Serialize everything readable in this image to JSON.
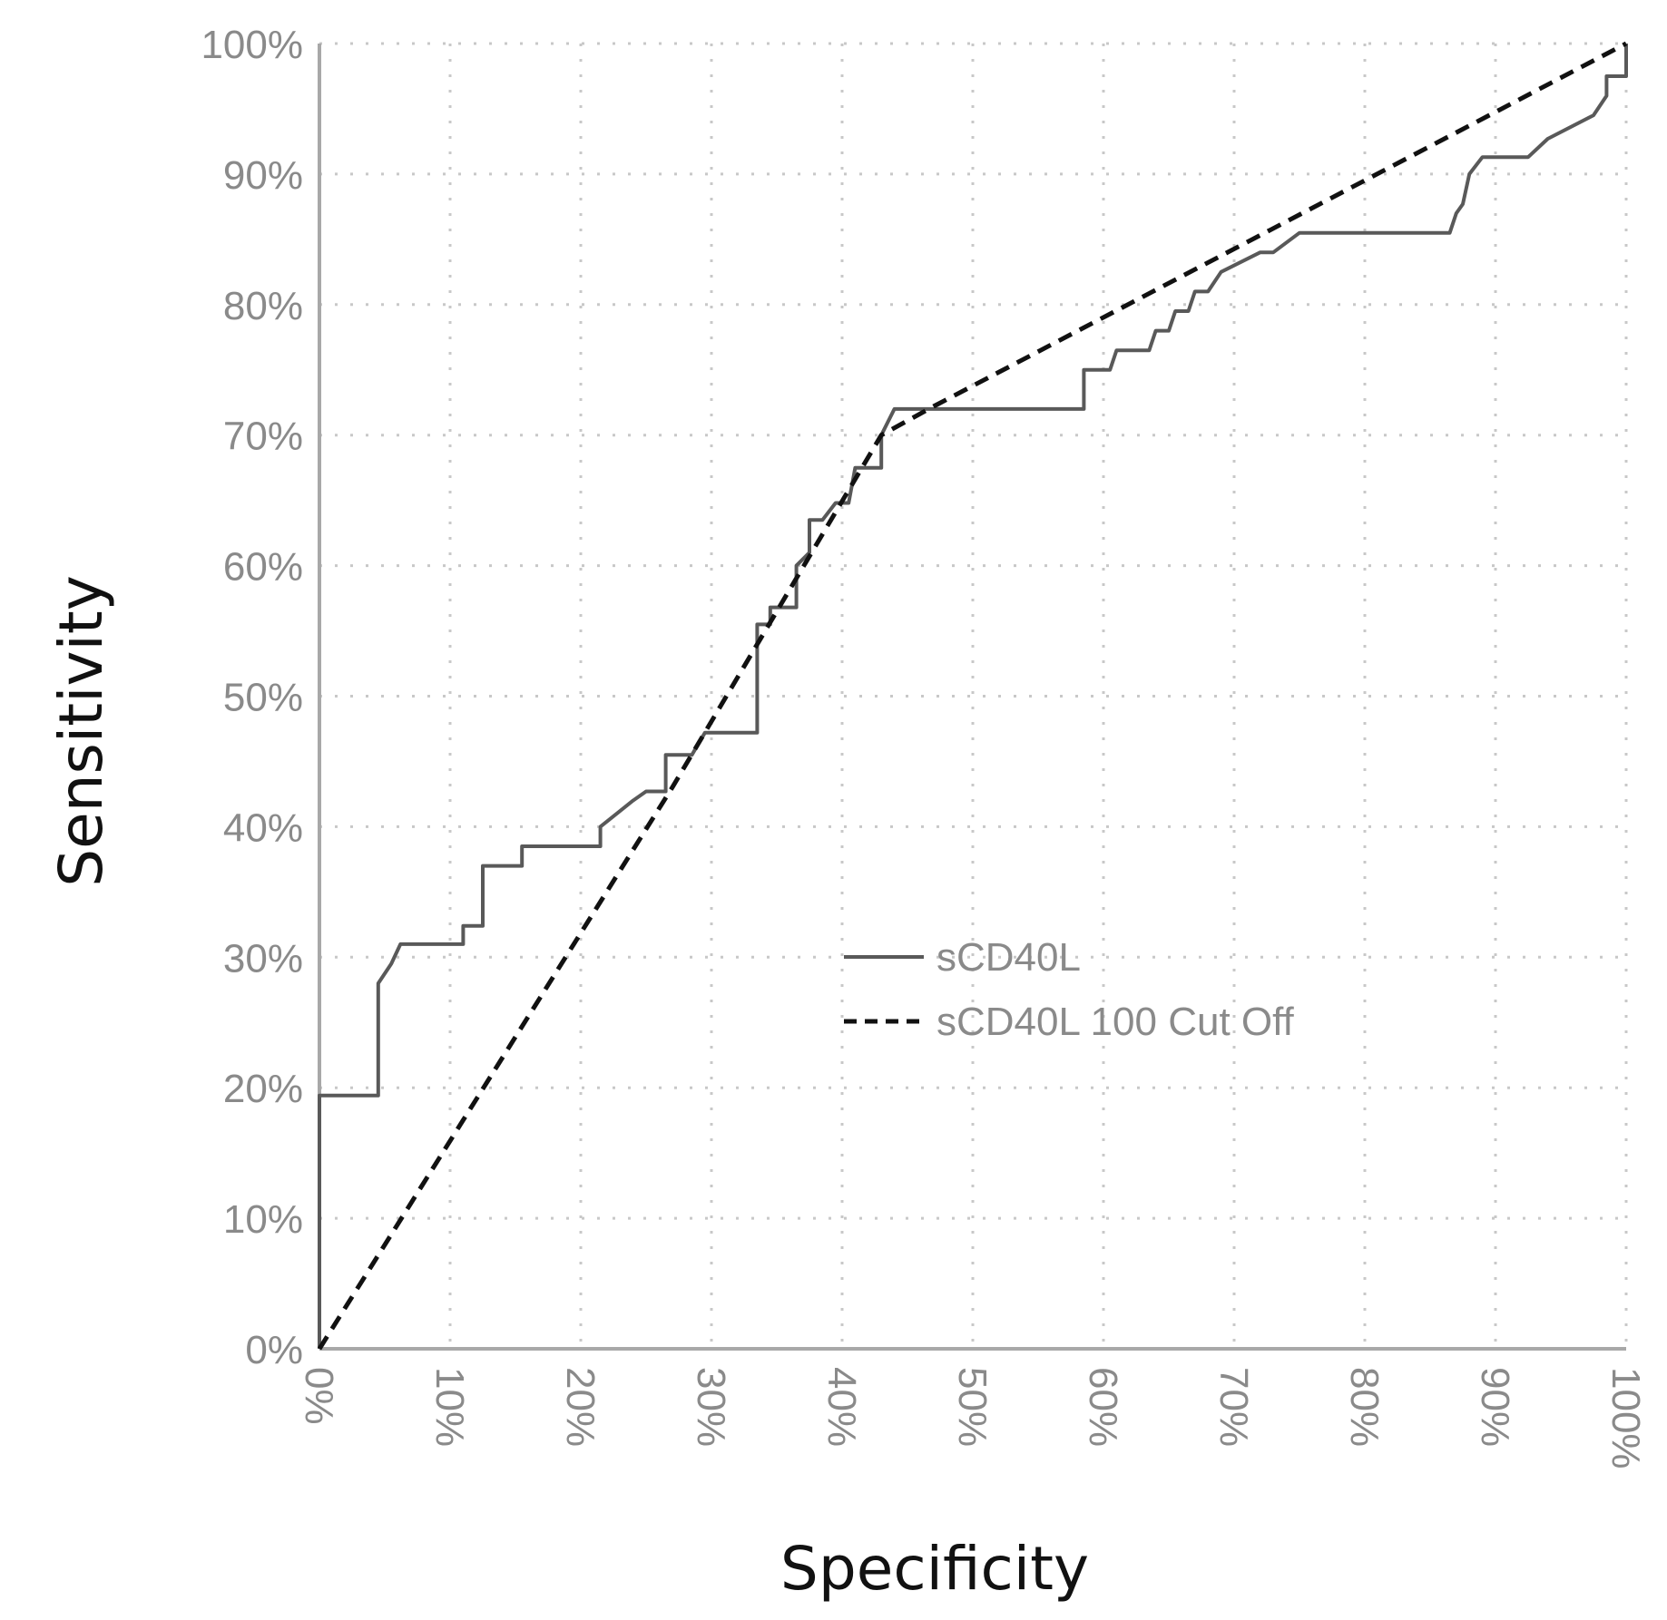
{
  "chart_data": {
    "type": "line",
    "xlabel": "Specificity",
    "ylabel": "Sensitivity",
    "xlim": [
      0,
      100
    ],
    "ylim": [
      0,
      100
    ],
    "x_ticks": [
      "0%",
      "10%",
      "20%",
      "30%",
      "40%",
      "50%",
      "60%",
      "70%",
      "80%",
      "90%",
      "100%"
    ],
    "y_ticks": [
      "0%",
      "10%",
      "20%",
      "30%",
      "40%",
      "50%",
      "60%",
      "70%",
      "80%",
      "90%",
      "100%"
    ],
    "grid": true,
    "legend_position": "center-right",
    "series": [
      {
        "name": "sCD40L",
        "style": "solid",
        "color": "#595959",
        "points": [
          [
            0,
            0
          ],
          [
            0,
            19.4
          ],
          [
            4.5,
            19.4
          ],
          [
            4.5,
            28
          ],
          [
            5.5,
            29.5
          ],
          [
            6.2,
            31
          ],
          [
            11,
            31
          ],
          [
            11,
            32.4
          ],
          [
            12.5,
            32.4
          ],
          [
            12.5,
            37
          ],
          [
            15.5,
            37
          ],
          [
            15.5,
            38.5
          ],
          [
            21.5,
            38.5
          ],
          [
            21.5,
            40
          ],
          [
            24,
            42
          ],
          [
            25,
            42.7
          ],
          [
            26.5,
            42.7
          ],
          [
            26.5,
            45.5
          ],
          [
            28.5,
            45.5
          ],
          [
            29.5,
            47.2
          ],
          [
            33.5,
            47.2
          ],
          [
            33.5,
            55.5
          ],
          [
            34.5,
            55.5
          ],
          [
            34.5,
            56.8
          ],
          [
            36.5,
            56.8
          ],
          [
            36.5,
            60
          ],
          [
            37.5,
            61
          ],
          [
            37.5,
            63.5
          ],
          [
            38.5,
            63.5
          ],
          [
            39.5,
            64.8
          ],
          [
            40.5,
            64.8
          ],
          [
            41,
            67.5
          ],
          [
            43,
            67.5
          ],
          [
            43,
            70
          ],
          [
            44,
            72
          ],
          [
            58.5,
            72
          ],
          [
            58.5,
            75
          ],
          [
            60.5,
            75
          ],
          [
            61,
            76.5
          ],
          [
            63.5,
            76.5
          ],
          [
            64,
            78
          ],
          [
            65,
            78
          ],
          [
            65.5,
            79.5
          ],
          [
            66.5,
            79.5
          ],
          [
            67,
            81
          ],
          [
            68,
            81
          ],
          [
            69,
            82.5
          ],
          [
            72,
            84
          ],
          [
            73,
            84
          ],
          [
            75,
            85.5
          ],
          [
            86.5,
            85.5
          ],
          [
            87,
            87
          ],
          [
            87.5,
            87.7
          ],
          [
            88,
            90
          ],
          [
            89,
            91.3
          ],
          [
            92.5,
            91.3
          ],
          [
            94,
            92.7
          ],
          [
            97.5,
            94.5
          ],
          [
            98.5,
            96
          ],
          [
            98.5,
            97.5
          ],
          [
            100,
            97.5
          ],
          [
            100,
            100
          ]
        ]
      },
      {
        "name": "sCD40L 100 Cut Off",
        "style": "dashed",
        "color": "#111111",
        "points": [
          [
            0,
            0
          ],
          [
            27,
            43
          ],
          [
            43,
            70
          ],
          [
            47,
            72.2
          ],
          [
            100,
            100
          ]
        ]
      }
    ]
  }
}
